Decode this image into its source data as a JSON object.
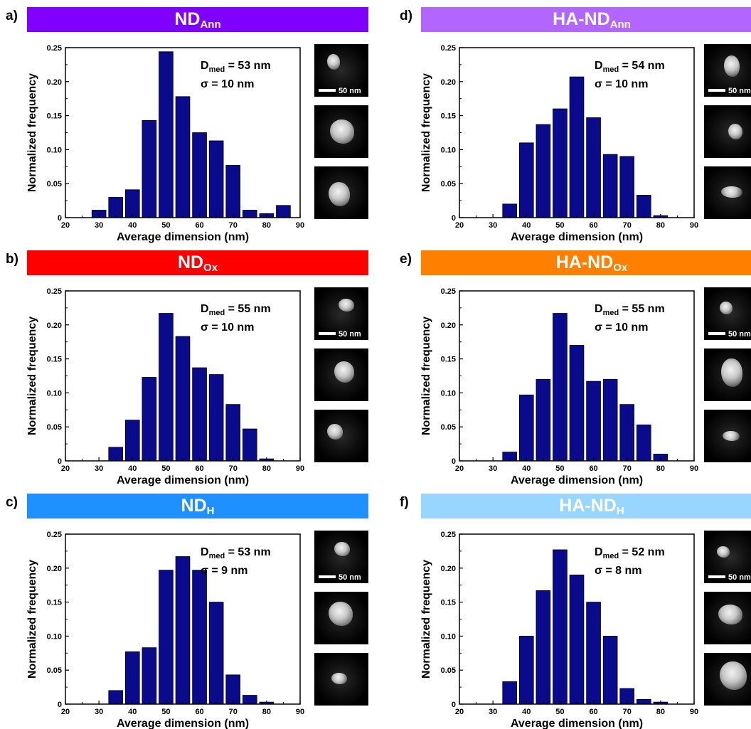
{
  "colors": {
    "bar": "#0a0a8c"
  },
  "chart_data": [
    {
      "panel": "a)",
      "type": "bar",
      "title_main": "ND",
      "title_sub": "Ann",
      "banner_color": "#8000ff",
      "stat1": "= 53 nm",
      "stat2": "σ = 10 nm",
      "stat_label": "D",
      "stat_sub": "med",
      "xlabel": "Average dimension (nm)",
      "ylabel": "Normalized frequency",
      "xlim": [
        20,
        90
      ],
      "ylim": [
        0,
        0.25
      ],
      "xticks": [
        "20",
        "30",
        "40",
        "50",
        "60",
        "70",
        "80",
        "90"
      ],
      "yticks": [
        "0",
        "0.05",
        "0.10",
        "0.15",
        "0.20",
        "0.25"
      ],
      "x": [
        30,
        35,
        40,
        45,
        50,
        55,
        60,
        65,
        70,
        75,
        80,
        85
      ],
      "values": [
        0.011,
        0.03,
        0.041,
        0.143,
        0.244,
        0.178,
        0.125,
        0.113,
        0.077,
        0.011,
        0.006,
        0.018
      ],
      "scale_label": "50 nm"
    },
    {
      "panel": "b)",
      "type": "bar",
      "title_main": "ND",
      "title_sub": "Ox",
      "banner_color": "#ff0000",
      "stat1": "= 55 nm",
      "stat2": "σ = 10 nm",
      "stat_label": "D",
      "stat_sub": "med",
      "xlabel": "Average dimension (nm)",
      "ylabel": "Normalized frequency",
      "xlim": [
        20,
        90
      ],
      "ylim": [
        0,
        0.25
      ],
      "xticks": [
        "20",
        "30",
        "40",
        "50",
        "60",
        "70",
        "80",
        "90"
      ],
      "yticks": [
        "0",
        "0.05",
        "0.10",
        "0.15",
        "0.20",
        "0.25"
      ],
      "x": [
        35,
        40,
        45,
        50,
        55,
        60,
        65,
        70,
        75,
        80
      ],
      "values": [
        0.02,
        0.06,
        0.123,
        0.217,
        0.183,
        0.137,
        0.127,
        0.083,
        0.047,
        0.003
      ],
      "scale_label": "50 nm"
    },
    {
      "panel": "c)",
      "type": "bar",
      "title_main": "ND",
      "title_sub": "H",
      "banner_color": "#1e90ff",
      "stat1": "= 53 nm",
      "stat2": "σ = 9 nm",
      "stat_label": "D",
      "stat_sub": "med",
      "xlabel": "Average dimension (nm)",
      "ylabel": "Normalized frequency",
      "xlim": [
        20,
        90
      ],
      "ylim": [
        0,
        0.25
      ],
      "xticks": [
        "20",
        "30",
        "40",
        "50",
        "60",
        "70",
        "80",
        "90"
      ],
      "yticks": [
        "0",
        "0.05",
        "0.10",
        "0.15",
        "0.20",
        "0.25"
      ],
      "x": [
        35,
        40,
        45,
        50,
        55,
        60,
        65,
        70,
        75,
        80
      ],
      "values": [
        0.02,
        0.077,
        0.083,
        0.197,
        0.217,
        0.197,
        0.15,
        0.043,
        0.013,
        0.003
      ],
      "scale_label": "50 nm"
    },
    {
      "panel": "d)",
      "type": "bar",
      "title_main": "HA-ND",
      "title_sub": "Ann",
      "banner_color": "#b266ff",
      "stat1": "= 54 nm",
      "stat2": "σ = 10 nm",
      "stat_label": "D",
      "stat_sub": "med",
      "xlabel": "Average dimension (nm)",
      "ylabel": "Normalized frequency",
      "xlim": [
        20,
        90
      ],
      "ylim": [
        0,
        0.25
      ],
      "xticks": [
        "20",
        "30",
        "40",
        "50",
        "60",
        "70",
        "80",
        "90"
      ],
      "yticks": [
        "0",
        "0.05",
        "0.10",
        "0.15",
        "0.20",
        "0.25"
      ],
      "x": [
        35,
        40,
        45,
        50,
        55,
        60,
        65,
        70,
        75,
        80
      ],
      "values": [
        0.02,
        0.11,
        0.137,
        0.16,
        0.207,
        0.147,
        0.093,
        0.09,
        0.033,
        0.003
      ],
      "scale_label": "50 nm"
    },
    {
      "panel": "e)",
      "type": "bar",
      "title_main": "HA-ND",
      "title_sub": "Ox",
      "banner_color": "#ff8000",
      "stat1": "= 55 nm",
      "stat2": "σ = 10 nm",
      "stat_label": "D",
      "stat_sub": "med",
      "xlabel": "Average dimension (nm)",
      "ylabel": "Normalized frequency",
      "xlim": [
        20,
        90
      ],
      "ylim": [
        0,
        0.25
      ],
      "xticks": [
        "20",
        "30",
        "40",
        "50",
        "60",
        "70",
        "80",
        "90"
      ],
      "yticks": [
        "0",
        "0.05",
        "0.10",
        "0.15",
        "0.20",
        "0.25"
      ],
      "x": [
        35,
        40,
        45,
        50,
        55,
        60,
        65,
        70,
        75,
        80
      ],
      "values": [
        0.013,
        0.097,
        0.12,
        0.217,
        0.17,
        0.117,
        0.12,
        0.083,
        0.053,
        0.01
      ],
      "scale_label": "50 nm"
    },
    {
      "panel": "f)",
      "type": "bar",
      "title_main": "HA-ND",
      "title_sub": "H",
      "banner_color": "#99d6ff",
      "stat1": "= 52 nm",
      "stat2": "σ = 8 nm",
      "stat_label": "D",
      "stat_sub": "med",
      "xlabel": "Average dimension (nm)",
      "ylabel": "Normalized frequency",
      "xlim": [
        20,
        90
      ],
      "ylim": [
        0,
        0.25
      ],
      "xticks": [
        "20",
        "30",
        "40",
        "50",
        "60",
        "70",
        "80",
        "90"
      ],
      "yticks": [
        "0",
        "0.05",
        "0.10",
        "0.15",
        "0.20",
        "0.25"
      ],
      "x": [
        35,
        40,
        45,
        50,
        55,
        60,
        65,
        70,
        75,
        80
      ],
      "values": [
        0.033,
        0.1,
        0.167,
        0.227,
        0.19,
        0.15,
        0.1,
        0.023,
        0.007,
        0.003
      ],
      "scale_label": "50 nm"
    }
  ]
}
